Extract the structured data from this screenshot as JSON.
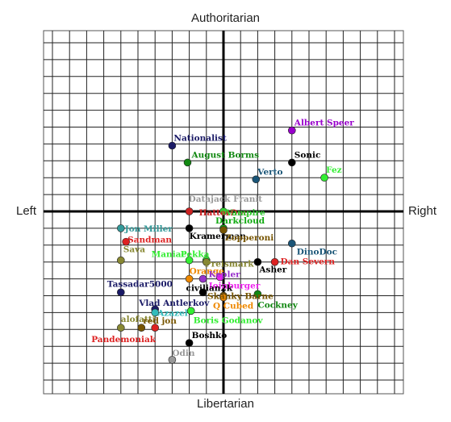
{
  "chart_data": {
    "type": "scatter",
    "axis_labels": {
      "top": "Authoritarian",
      "bottom": "Libertarian",
      "left": "Left",
      "right": "Right"
    },
    "xlim": [
      -10,
      10
    ],
    "ylim": [
      -10,
      10
    ],
    "grid": true,
    "points": [
      {
        "name": "Albert Speer",
        "x": 4.0,
        "y": 4.8,
        "color": "#9900cc"
      },
      {
        "name": "Sonic",
        "x": 4.0,
        "y": 2.9,
        "color": "#000000"
      },
      {
        "name": "Nationalist",
        "x": -3.0,
        "y": 3.9,
        "color": "#1a1a66"
      },
      {
        "name": "August Borms",
        "x": -2.1,
        "y": 2.9,
        "color": "#118811"
      },
      {
        "name": "Verto",
        "x": 1.9,
        "y": 1.9,
        "color": "#1a5577"
      },
      {
        "name": "Fez",
        "x": 5.9,
        "y": 2.0,
        "color": "#33ee33"
      },
      {
        "name": "Datajack Franit",
        "x": -2.0,
        "y": 0.0,
        "color": "#999999"
      },
      {
        "name": "HatterDoc",
        "x": -2.0,
        "y": 0.0,
        "color": "#cc2222"
      },
      {
        "name": "Vampire",
        "x": 0.0,
        "y": 0.0,
        "color": "#33cc33"
      },
      {
        "name": "Darkcloud",
        "x": 0.0,
        "y": -1.0,
        "color": "#11aa11"
      },
      {
        "name": "Jon Miller",
        "x": -6.0,
        "y": -1.0,
        "color": "#339999"
      },
      {
        "name": "Kramerman",
        "x": -2.0,
        "y": -1.0,
        "color": "#000000"
      },
      {
        "name": "Zopperoni",
        "x": 0.0,
        "y": -1.1,
        "color": "#775500"
      },
      {
        "name": "Sandman",
        "x": -5.7,
        "y": -1.8,
        "color": "#dd2222"
      },
      {
        "name": "DinoDoc",
        "x": 4.0,
        "y": -1.9,
        "color": "#1a5577"
      },
      {
        "name": "Sava",
        "x": -6.0,
        "y": -2.9,
        "color": "#888833"
      },
      {
        "name": "Maniac",
        "x": -2.0,
        "y": -2.9,
        "color": "#33ee33"
      },
      {
        "name": "Pekka",
        "x": -1.0,
        "y": -2.9,
        "color": "#33ee33"
      },
      {
        "name": "Preismark",
        "x": -1.0,
        "y": -3.0,
        "color": "#888833"
      },
      {
        "name": "Asher",
        "x": 2.0,
        "y": -3.0,
        "color": "#000000"
      },
      {
        "name": "Dan Severn",
        "x": 3.0,
        "y": -3.0,
        "color": "#dd2222"
      },
      {
        "name": "Orange",
        "x": -2.0,
        "y": -4.0,
        "color": "#ee8800"
      },
      {
        "name": "Kepler",
        "x": -1.2,
        "y": -4.0,
        "color": "#9933cc"
      },
      {
        "name": "Ioinburger",
        "x": -0.2,
        "y": -3.9,
        "color": "#ee22ee"
      },
      {
        "name": "Tassadar5000",
        "x": -6.0,
        "y": -4.8,
        "color": "#1a1a66"
      },
      {
        "name": "civilian2k",
        "x": -1.2,
        "y": -4.8,
        "color": "#000000"
      },
      {
        "name": "Skanky Barne",
        "x": 0.0,
        "y": -5.0,
        "color": "#775500"
      },
      {
        "name": "Cockney",
        "x": 2.0,
        "y": -4.9,
        "color": "#118811"
      },
      {
        "name": "Q Cubed",
        "x": 0.0,
        "y": -5.1,
        "color": "#ee8800"
      },
      {
        "name": "Vlad Antlerkov",
        "x": -4.0,
        "y": -5.8,
        "color": "#1a1a66"
      },
      {
        "name": "Azazel",
        "x": -4.0,
        "y": -6.0,
        "color": "#33bbbb"
      },
      {
        "name": "Boris Godanov",
        "x": -1.9,
        "y": -5.9,
        "color": "#33ee33"
      },
      {
        "name": "alofatti",
        "x": -6.0,
        "y": -6.9,
        "color": "#888833"
      },
      {
        "name": "red jon",
        "x": -4.8,
        "y": -6.9,
        "color": "#775500"
      },
      {
        "name": "Pandemoniak",
        "x": -4.0,
        "y": -6.9,
        "color": "#dd2222"
      },
      {
        "name": "Boshko",
        "x": -2.0,
        "y": -7.8,
        "color": "#000000"
      },
      {
        "name": "Odin",
        "x": -3.0,
        "y": -8.8,
        "color": "#999999"
      }
    ]
  }
}
